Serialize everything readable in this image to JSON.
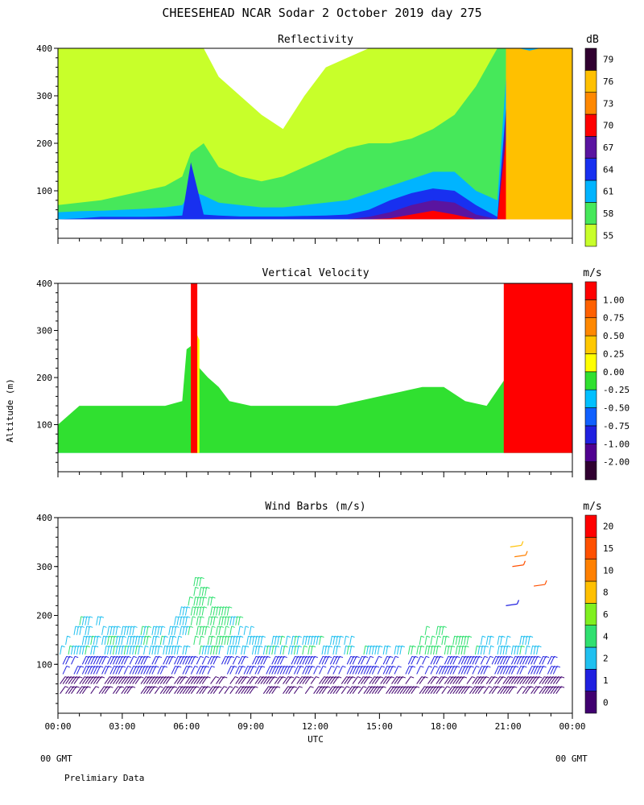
{
  "title": "CHEESEHEAD  NCAR Sodar   2 October 2019  day 275",
  "yaxis_label": "Altitude (m)",
  "xaxis_label": "UTC",
  "x_ticks": [
    "00:00",
    "03:00",
    "06:00",
    "09:00",
    "12:00",
    "15:00",
    "18:00",
    "21:00",
    "00:00"
  ],
  "footer": {
    "left_gmt": "00 GMT",
    "right_gmt": "00 GMT",
    "note": "Prelimiary Data"
  },
  "colors": {
    "refl": [
      "#c8ff2a",
      "#46e85a",
      "#00b4ff",
      "#1830f0",
      "#5a14a0",
      "#ff0000",
      "#ff8800",
      "#ffc000",
      "#300030"
    ],
    "vvel": [
      "#300030",
      "#500090",
      "#2020e0",
      "#1060ff",
      "#00c0ff",
      "#30e030",
      "#ffff00",
      "#ffc800",
      "#ff8800",
      "#ff6000",
      "#ff0000"
    ],
    "wind": [
      "#400070",
      "#2020e0",
      "#20c0f0",
      "#30e070",
      "#80f020",
      "#ffc000",
      "#ff8000",
      "#ff5000",
      "#ff0000"
    ]
  },
  "chart_data": [
    {
      "type": "heatmap",
      "title": "Reflectivity",
      "units": "dB",
      "x_range_hours": [
        0,
        24
      ],
      "ylim": [
        0,
        400
      ],
      "y_ticks": [
        100,
        200,
        300,
        400
      ],
      "colorbar_labels": [
        "55",
        "58",
        "61",
        "64",
        "67",
        "70",
        "73",
        "76",
        "79"
      ],
      "layers": [
        {
          "class": "55",
          "level": 0,
          "x": [
            0,
            1,
            2,
            3,
            4,
            5,
            5.8,
            6.2,
            6.8,
            7.5,
            8.5,
            9.5,
            10.5,
            11.5,
            12.5,
            13.5,
            14.5,
            15.5,
            16.5,
            17.5,
            18.5,
            19.5,
            20.5,
            21,
            22,
            23,
            24
          ],
          "top": [
            400,
            400,
            400,
            400,
            400,
            400,
            400,
            400,
            400,
            340,
            300,
            260,
            230,
            300,
            360,
            380,
            400,
            400,
            400,
            400,
            400,
            400,
            400,
            400,
            400,
            400,
            400
          ]
        },
        {
          "class": "58",
          "level": 1,
          "x": [
            0,
            1,
            2,
            3,
            4,
            5,
            5.8,
            6.2,
            6.8,
            7.5,
            8.5,
            9.5,
            10.5,
            11.5,
            12.5,
            13.5,
            14.5,
            15.5,
            16.5,
            17.5,
            18.5,
            19.5,
            20.5,
            21,
            22,
            23,
            24
          ],
          "top": [
            70,
            75,
            80,
            90,
            100,
            110,
            130,
            180,
            200,
            150,
            130,
            120,
            130,
            150,
            170,
            190,
            200,
            200,
            210,
            230,
            260,
            320,
            400,
            400,
            400,
            400,
            400
          ]
        },
        {
          "class": "61",
          "level": 2,
          "x": [
            0,
            1,
            2,
            3,
            4,
            5,
            5.8,
            6.2,
            6.8,
            7.5,
            8.5,
            9.5,
            10.5,
            11.5,
            12.5,
            13.5,
            14.5,
            15.5,
            16.5,
            17.5,
            18.5,
            19.5,
            20.5,
            21,
            22,
            23,
            24
          ],
          "top": [
            55,
            57,
            58,
            60,
            62,
            65,
            70,
            100,
            90,
            75,
            70,
            65,
            65,
            70,
            75,
            80,
            95,
            110,
            125,
            140,
            140,
            100,
            80,
            400,
            400,
            400,
            400
          ]
        },
        {
          "class": "64",
          "level": 3,
          "x": [
            0,
            1,
            2,
            3,
            4,
            5,
            5.8,
            6.2,
            6.8,
            7.5,
            8.5,
            9.5,
            10.5,
            11.5,
            12.5,
            13.5,
            14.5,
            15.5,
            16.5,
            17.5,
            18.5,
            19.5,
            20.5,
            21,
            22,
            23,
            24
          ],
          "top": [
            40,
            42,
            45,
            45,
            45,
            46,
            48,
            160,
            50,
            48,
            46,
            46,
            46,
            47,
            48,
            50,
            60,
            80,
            95,
            105,
            100,
            70,
            45,
            330,
            300,
            320,
            340
          ]
        },
        {
          "class": "67",
          "level": 4,
          "x": [
            0,
            1,
            2,
            3,
            4,
            5,
            5.8,
            6.2,
            6.8,
            7.5,
            8.5,
            9.5,
            10.5,
            11.5,
            12.5,
            13.5,
            14.5,
            15.5,
            16.5,
            17.5,
            18.5,
            19.5,
            20.5,
            21,
            22,
            23,
            24
          ],
          "top": [
            40,
            40,
            40,
            40,
            40,
            40,
            40,
            40,
            40,
            40,
            40,
            40,
            40,
            40,
            40,
            40,
            45,
            55,
            70,
            80,
            75,
            50,
            40,
            310,
            290,
            300,
            310
          ]
        },
        {
          "class": "70",
          "level": 5,
          "x": [
            0,
            1,
            2,
            3,
            4,
            5,
            5.8,
            6.2,
            6.8,
            7.5,
            8.5,
            9.5,
            10.5,
            11.5,
            12.5,
            13.5,
            14.5,
            15.5,
            16.5,
            17.5,
            18.5,
            19.5,
            20.5,
            21,
            22,
            23,
            24
          ],
          "top": [
            40,
            40,
            40,
            40,
            40,
            40,
            40,
            40,
            40,
            40,
            40,
            40,
            40,
            40,
            40,
            40,
            40,
            42,
            50,
            58,
            50,
            40,
            40,
            250,
            260,
            250,
            280
          ]
        },
        {
          "class": "73",
          "level": 6,
          "x": [
            20.9,
            21.5,
            22,
            22.5,
            23,
            23.5,
            24
          ],
          "top": [
            400,
            380,
            360,
            370,
            380,
            390,
            400
          ]
        },
        {
          "class": "76",
          "level": 7,
          "x": [
            20.9,
            21.5,
            22,
            22.5,
            23,
            23.5,
            24
          ],
          "top": [
            400,
            400,
            395,
            400,
            400,
            400,
            400
          ]
        }
      ]
    },
    {
      "type": "heatmap",
      "title": "Vertical Velocity",
      "units": "m/s",
      "x_range_hours": [
        0,
        24
      ],
      "ylim": [
        0,
        400
      ],
      "y_ticks": [
        100,
        200,
        300,
        400
      ],
      "colorbar_labels": [
        "-2.00",
        "-1.00",
        "-0.75",
        "-0.50",
        "-0.25",
        "0.00",
        "0.25",
        "0.50",
        "0.75",
        "1.00"
      ],
      "layers": [
        {
          "class": "-0.25",
          "level": 4,
          "x": [
            0,
            1,
            2,
            3,
            4,
            5,
            6,
            7,
            8,
            9,
            10,
            11,
            12,
            13,
            14,
            15,
            16,
            17,
            18,
            19,
            20,
            20.9,
            22,
            23,
            24
          ],
          "top": [
            100,
            100,
            100,
            100,
            100,
            100,
            100,
            100,
            100,
            100,
            100,
            100,
            100,
            100,
            100,
            100,
            100,
            100,
            100,
            100,
            100,
            120,
            120,
            120,
            120
          ]
        },
        {
          "class": "0.00",
          "level": 5,
          "x": [
            0,
            1,
            2,
            3,
            4,
            5,
            5.8,
            6,
            6.3,
            6.6,
            7,
            7.5,
            8,
            9,
            10,
            11,
            12,
            13,
            14,
            15,
            16,
            17,
            18,
            19,
            20,
            20.9,
            21.5,
            22,
            23,
            24
          ],
          "top": [
            100,
            140,
            140,
            140,
            140,
            140,
            150,
            260,
            270,
            220,
            200,
            180,
            150,
            140,
            140,
            140,
            140,
            140,
            150,
            160,
            170,
            180,
            180,
            150,
            140,
            200,
            320,
            230,
            260,
            290
          ]
        },
        {
          "class": "0.25",
          "level": 6,
          "x": [
            6.2,
            6.4,
            6.6
          ],
          "top": [
            280,
            300,
            280
          ]
        },
        {
          "class": "1.00",
          "level": 10,
          "x": [
            6.2,
            6.3,
            6.5
          ],
          "top": [
            400,
            400,
            400
          ]
        },
        {
          "class": "1.00",
          "level": 10,
          "x": [
            20.8,
            21.5,
            22,
            22.5,
            23,
            23.5,
            24
          ],
          "top": [
            400,
            400,
            400,
            400,
            400,
            400,
            400
          ]
        }
      ]
    },
    {
      "type": "scatter",
      "title": "Wind Barbs (m/s)",
      "units": "m/s",
      "x_range_hours": [
        0,
        24
      ],
      "ylim": [
        0,
        400
      ],
      "y_ticks": [
        100,
        200,
        300,
        400
      ],
      "colorbar_labels": [
        "0",
        "1",
        "2",
        "4",
        "6",
        "8",
        "10",
        "15",
        "20"
      ],
      "observed_heights_m": [
        40,
        60,
        80,
        100,
        120,
        140,
        160,
        180,
        200,
        220,
        240,
        260,
        280,
        300,
        320,
        340
      ],
      "max_height_by_hour": [
        [
          0,
          120
        ],
        [
          1,
          180
        ],
        [
          2,
          180
        ],
        [
          3,
          160
        ],
        [
          4,
          160
        ],
        [
          5,
          160
        ],
        [
          6,
          220
        ],
        [
          6.5,
          280
        ],
        [
          7,
          240
        ],
        [
          8,
          200
        ],
        [
          9,
          160
        ],
        [
          10,
          140
        ],
        [
          11,
          140
        ],
        [
          12,
          140
        ],
        [
          13,
          140
        ],
        [
          14,
          140
        ],
        [
          15,
          120
        ],
        [
          16,
          120
        ],
        [
          17,
          160
        ],
        [
          18,
          160
        ],
        [
          19,
          140
        ],
        [
          20,
          140
        ],
        [
          21,
          140
        ],
        [
          22,
          140
        ],
        [
          23,
          100
        ]
      ],
      "high_barbs": [
        {
          "x": 21.1,
          "y": 340,
          "speed": 8
        },
        {
          "x": 21.3,
          "y": 320,
          "speed": 10
        },
        {
          "x": 21.2,
          "y": 300,
          "speed": 15
        },
        {
          "x": 22.2,
          "y": 260,
          "speed": 15
        },
        {
          "x": 20.9,
          "y": 220,
          "speed": 1
        }
      ]
    }
  ]
}
